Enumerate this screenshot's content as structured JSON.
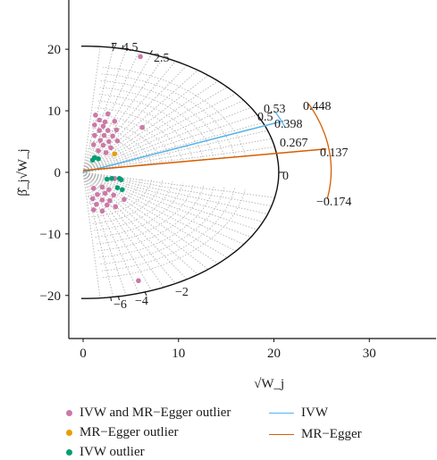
{
  "chart_data": {
    "type": "scatter",
    "subtype": "radial-plot",
    "xlabel": "√W_j",
    "ylabel": "β̂_j√W_j",
    "xlim": [
      -1.5,
      37
    ],
    "ylim": [
      -27,
      28
    ],
    "x_ticks": [
      0,
      10,
      20,
      30
    ],
    "y_ticks": [
      -20,
      -10,
      0,
      10,
      20
    ],
    "grid": false,
    "colors": {
      "ivw_mr_egger_outlier": "#cc79a7",
      "mr_egger_outlier": "#e69f00",
      "ivw_outlier": "#009e73",
      "ivw": "#56b4e9",
      "mr_egger": "#d55e00",
      "guide": "#b3b3b3"
    },
    "legend": {
      "position": "bottom",
      "items": [
        {
          "label": "IVW and MR−Egger outlier",
          "kind": "point",
          "color": "#cc79a7"
        },
        {
          "label": "MR−Egger outlier",
          "kind": "point",
          "color": "#e69f00"
        },
        {
          "label": "IVW outlier",
          "kind": "point",
          "color": "#009e73"
        },
        {
          "label": "IVW",
          "kind": "line",
          "color": "#56b4e9"
        },
        {
          "label": "MR−Egger",
          "kind": "line",
          "color": "#d55e00"
        }
      ]
    },
    "scale_arc": {
      "radius": 20.5,
      "labels": [
        "7",
        "4.5",
        "2.5",
        "0",
        "−2",
        "−6",
        "−4"
      ]
    },
    "ivw": {
      "slope": 0.398,
      "end_x": 21,
      "arc_labels": [
        "0.53",
        "0.5",
        "0.398",
        "0.267"
      ]
    },
    "mr_egger": {
      "intercept": 0.3,
      "slope": 0.137,
      "end_x": 25.5,
      "arc_labels": [
        "0.448",
        "0.137",
        "−0.174"
      ]
    },
    "series": [
      {
        "name": "IVW and MR−Egger outlier",
        "points": [
          [
            1.3,
            9.3
          ],
          [
            2.6,
            9.5
          ],
          [
            1.7,
            8.5
          ],
          [
            2.3,
            8.2
          ],
          [
            3.3,
            8.3
          ],
          [
            1.2,
            7.7
          ],
          [
            2.1,
            7.5
          ],
          [
            1.7,
            6.8
          ],
          [
            2.6,
            6.8
          ],
          [
            3.5,
            6.9
          ],
          [
            6.2,
            7.3
          ],
          [
            1.2,
            6.0
          ],
          [
            2.2,
            6.0
          ],
          [
            3.1,
            5.9
          ],
          [
            1.8,
            5.2
          ],
          [
            2.7,
            5.0
          ],
          [
            3.6,
            5.1
          ],
          [
            1.1,
            4.5
          ],
          [
            2.1,
            4.4
          ],
          [
            2.9,
            4.0
          ],
          [
            1.6,
            3.5
          ],
          [
            2.4,
            3.2
          ],
          [
            6.0,
            18.8
          ],
          [
            1.1,
            -2.6
          ],
          [
            2.0,
            -2.4
          ],
          [
            2.7,
            -2.8
          ],
          [
            1.5,
            -3.6
          ],
          [
            2.3,
            -3.4
          ],
          [
            3.2,
            -3.7
          ],
          [
            1.0,
            -4.3
          ],
          [
            2.0,
            -4.5
          ],
          [
            2.8,
            -4.6
          ],
          [
            1.4,
            -5.2
          ],
          [
            2.5,
            -5.3
          ],
          [
            3.4,
            -5.6
          ],
          [
            1.1,
            -6.1
          ],
          [
            2.0,
            -6.3
          ],
          [
            4.3,
            -4.4
          ],
          [
            5.8,
            -17.6
          ],
          [
            3.3,
            -1.0
          ]
        ]
      },
      {
        "name": "MR−Egger outlier",
        "points": [
          [
            3.3,
            3.0
          ]
        ]
      },
      {
        "name": "IVW outlier",
        "points": [
          [
            1.2,
            2.4
          ],
          [
            1.6,
            2.2
          ],
          [
            1.0,
            2.0
          ],
          [
            2.5,
            -1.1
          ],
          [
            3.0,
            -1.0
          ],
          [
            3.8,
            -1.0
          ],
          [
            4.0,
            -1.2
          ],
          [
            3.6,
            -2.5
          ],
          [
            4.1,
            -2.8
          ]
        ]
      }
    ]
  }
}
